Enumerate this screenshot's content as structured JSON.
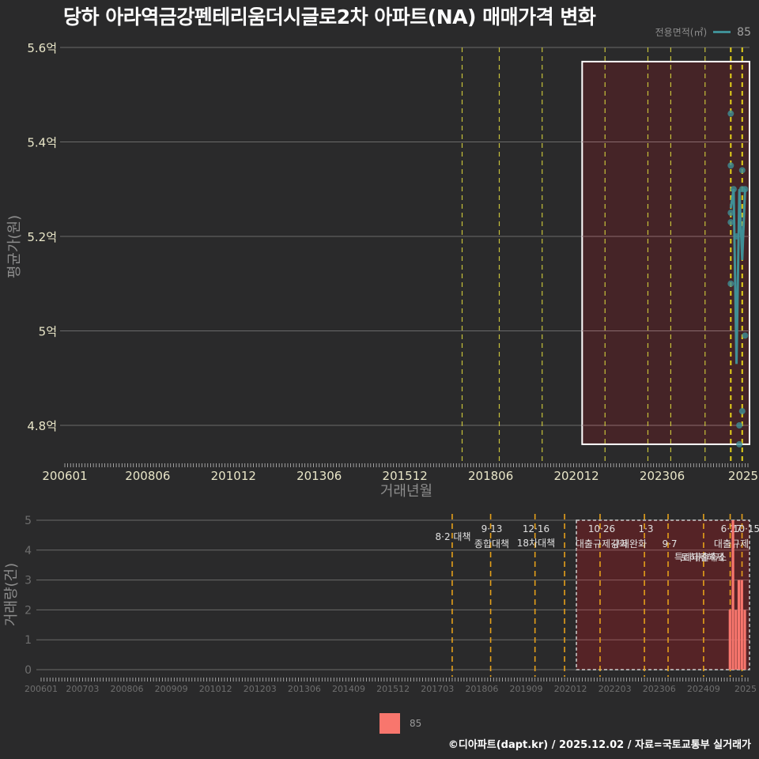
{
  "title": "당하 아라역금강펜테리움더시글로2차 아파트(NA) 매매가격 변화",
  "legend_top": {
    "label": "전용면적(㎡)",
    "value": "85",
    "color": "#3f8f96"
  },
  "legend_bottom": {
    "value": "85",
    "color": "#f8766d"
  },
  "footer": "©디아파트(dapt.kr) / 2025.12.02 / 자료=국토교통부 실거래가",
  "chart_data": [
    {
      "type": "line",
      "title": "당하 아라역금강펜테리움더시글로2차 아파트(NA) 매매가격 변화",
      "xlabel": "거래년월",
      "ylabel": "평균가(원)",
      "x_tick_labels": [
        "200601",
        "200806",
        "201012",
        "201306",
        "201512",
        "201806",
        "202012",
        "202306",
        "2025"
      ],
      "y_tick_labels": [
        "4.8억",
        "5억",
        "5.2억",
        "5.4억",
        "5.6억"
      ],
      "y_ticks": [
        4.8,
        5.0,
        5.2,
        5.4,
        5.6
      ],
      "ylim": [
        4.72,
        5.62
      ],
      "grid": true,
      "legend_position": "top-right",
      "highlight_box": {
        "x_start": "202102",
        "x_end": "202512",
        "y_start": 4.76,
        "y_end": 5.57
      },
      "policy_lines": [
        "201708",
        "201809",
        "201912",
        "202110",
        "202301",
        "202309",
        "202409",
        "202506",
        "202510"
      ],
      "series": [
        {
          "name": "85",
          "points": [
            {
              "x": "202506",
              "y": 5.46
            },
            {
              "x": "202506",
              "y": 5.35
            },
            {
              "x": "202507",
              "y": 5.3
            },
            {
              "x": "202506",
              "y": 5.25
            },
            {
              "x": "202506",
              "y": 5.23
            },
            {
              "x": "202508",
              "y": 5.2
            },
            {
              "x": "202506",
              "y": 5.1
            },
            {
              "x": "202510",
              "y": 5.34
            },
            {
              "x": "202510",
              "y": 5.3
            },
            {
              "x": "202511",
              "y": 5.3
            },
            {
              "x": "202511",
              "y": 4.99
            },
            {
              "x": "202510",
              "y": 4.83
            },
            {
              "x": "202509",
              "y": 4.8
            },
            {
              "x": "202509",
              "y": 4.76
            }
          ],
          "line": [
            {
              "x": "202506",
              "y": 5.26
            },
            {
              "x": "202507",
              "y": 5.3
            },
            {
              "x": "202508",
              "y": 4.93
            },
            {
              "x": "202509",
              "y": 5.3
            },
            {
              "x": "202510",
              "y": 5.15
            },
            {
              "x": "202511",
              "y": 5.3
            }
          ]
        }
      ]
    },
    {
      "type": "bar",
      "xlabel": "",
      "ylabel": "거래량(건)",
      "x_tick_labels": [
        "200601",
        "200703",
        "200806",
        "200909",
        "201012",
        "201203",
        "201306",
        "201409",
        "201512",
        "201703",
        "201806",
        "201909",
        "202012",
        "202203",
        "202306",
        "202409",
        "2025"
      ],
      "y_tick_labels": [
        "0",
        "1",
        "2",
        "3",
        "4",
        "5"
      ],
      "ylim": [
        0,
        5
      ],
      "grid": true,
      "legend_position": "bottom",
      "highlight_box": {
        "x_start": "202102",
        "x_end": "202512"
      },
      "annotations": [
        {
          "date": "201708",
          "line1": "8·2 대책",
          "line2": ""
        },
        {
          "date": "201809",
          "line1": "9·13",
          "line2": "종합대책"
        },
        {
          "date": "201912",
          "line1": "12·16",
          "line2": "18차대책"
        },
        {
          "date": "202010",
          "line1": "",
          "line2": ""
        },
        {
          "date": "202110",
          "line1": "10·26",
          "line2": "대출규제강화"
        },
        {
          "date": "202301",
          "line1": "1·3",
          "line2": "규제완화"
        },
        {
          "date": "202309",
          "line1": "9·7",
          "line2": "특례대출축소"
        },
        {
          "date": "202409",
          "line1": "",
          "line2": "토허제해제"
        },
        {
          "date": "202506",
          "line1": "6·27",
          "line2": "대출규제"
        },
        {
          "date": "202510",
          "line1": "10·15",
          "line2": ""
        }
      ],
      "series": [
        {
          "name": "85",
          "categories": [
            "202506",
            "202507",
            "202508",
            "202509",
            "202510",
            "202511"
          ],
          "values": [
            2,
            5,
            2,
            3,
            3,
            2
          ]
        }
      ]
    }
  ]
}
